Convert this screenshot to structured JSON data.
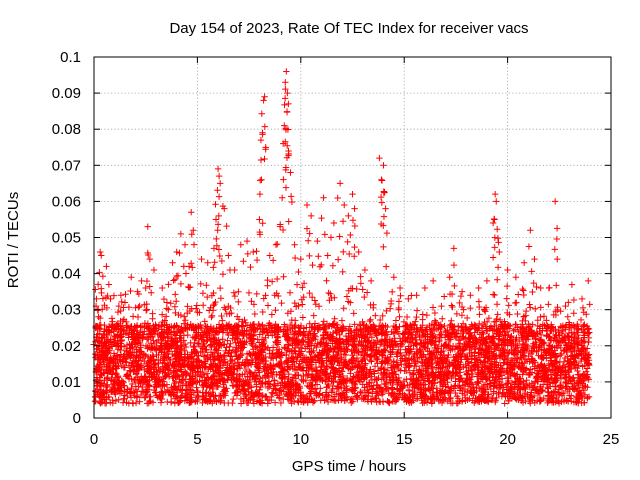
{
  "chart_data": {
    "type": "scatter",
    "title": "Day 154 of 2023, Rate Of TEC Index for receiver vacs",
    "xlabel": "GPS time / hours",
    "ylabel": "ROTI / TECUs",
    "xlim": [
      0,
      25
    ],
    "ylim": [
      0,
      0.1
    ],
    "xticks": [
      "0",
      "5",
      "10",
      "15",
      "20",
      "25"
    ],
    "yticks": [
      "0",
      "0.01",
      "0.02",
      "0.03",
      "0.04",
      "0.05",
      "0.06",
      "0.07",
      "0.08",
      "0.09",
      "0.1"
    ],
    "grid": true,
    "marker": "+",
    "color": "#ff0000",
    "series": [
      {
        "points": [
          [
            0.1,
            0.031
          ],
          [
            0.2,
            0.037
          ],
          [
            0.3,
            0.046
          ],
          [
            0.35,
            0.045
          ],
          [
            0.6,
            0.042
          ],
          [
            0.8,
            0.033
          ],
          [
            1.2,
            0.031
          ],
          [
            1.5,
            0.032
          ],
          [
            1.8,
            0.039
          ],
          [
            2.1,
            0.035
          ],
          [
            2.3,
            0.038
          ],
          [
            2.5,
            0.036
          ],
          [
            2.6,
            0.053
          ],
          [
            2.7,
            0.044
          ],
          [
            2.9,
            0.041
          ],
          [
            3.3,
            0.036
          ],
          [
            3.6,
            0.037
          ],
          [
            3.8,
            0.043
          ],
          [
            4.0,
            0.046
          ],
          [
            4.2,
            0.051
          ],
          [
            4.4,
            0.048
          ],
          [
            4.6,
            0.042
          ],
          [
            4.7,
            0.057
          ],
          [
            4.8,
            0.052
          ],
          [
            5.2,
            0.044
          ],
          [
            5.5,
            0.043
          ],
          [
            5.8,
            0.047
          ],
          [
            5.9,
            0.055
          ],
          [
            6.0,
            0.069
          ],
          [
            6.05,
            0.067
          ],
          [
            6.1,
            0.065
          ],
          [
            6.3,
            0.058
          ],
          [
            6.5,
            0.045
          ],
          [
            6.8,
            0.041
          ],
          [
            7.1,
            0.048
          ],
          [
            7.4,
            0.049
          ],
          [
            7.7,
            0.046
          ],
          [
            8.0,
            0.055
          ],
          [
            8.1,
            0.066
          ],
          [
            8.15,
            0.079
          ],
          [
            8.2,
            0.088
          ],
          [
            8.25,
            0.089
          ],
          [
            8.5,
            0.045
          ],
          [
            8.8,
            0.048
          ],
          [
            9.0,
            0.053
          ],
          [
            9.1,
            0.061
          ],
          [
            9.15,
            0.076
          ],
          [
            9.2,
            0.081
          ],
          [
            9.25,
            0.093
          ],
          [
            9.3,
            0.096
          ],
          [
            9.35,
            0.09
          ],
          [
            9.4,
            0.087
          ],
          [
            9.5,
            0.068
          ],
          [
            9.7,
            0.048
          ],
          [
            10.0,
            0.044
          ],
          [
            10.3,
            0.059
          ],
          [
            10.5,
            0.056
          ],
          [
            10.8,
            0.049
          ],
          [
            11.1,
            0.061
          ],
          [
            11.3,
            0.045
          ],
          [
            11.6,
            0.054
          ],
          [
            11.9,
            0.065
          ],
          [
            12.1,
            0.059
          ],
          [
            12.3,
            0.056
          ],
          [
            12.5,
            0.062
          ],
          [
            12.6,
            0.058
          ],
          [
            12.8,
            0.046
          ],
          [
            13.1,
            0.041
          ],
          [
            13.4,
            0.038
          ],
          [
            13.8,
            0.072
          ],
          [
            13.9,
            0.066
          ],
          [
            14.0,
            0.07
          ],
          [
            14.1,
            0.058
          ],
          [
            14.5,
            0.039
          ],
          [
            14.8,
            0.036
          ],
          [
            15.2,
            0.033
          ],
          [
            15.6,
            0.034
          ],
          [
            16.0,
            0.036
          ],
          [
            16.4,
            0.038
          ],
          [
            16.8,
            0.031
          ],
          [
            17.2,
            0.039
          ],
          [
            17.4,
            0.047
          ],
          [
            17.8,
            0.035
          ],
          [
            18.2,
            0.034
          ],
          [
            18.6,
            0.036
          ],
          [
            19.0,
            0.038
          ],
          [
            19.3,
            0.054
          ],
          [
            19.4,
            0.062
          ],
          [
            19.45,
            0.06
          ],
          [
            19.6,
            0.046
          ],
          [
            20.0,
            0.041
          ],
          [
            20.4,
            0.039
          ],
          [
            20.8,
            0.043
          ],
          [
            21.1,
            0.052
          ],
          [
            21.3,
            0.044
          ],
          [
            21.6,
            0.036
          ],
          [
            22.0,
            0.036
          ],
          [
            22.3,
            0.06
          ],
          [
            22.4,
            0.044
          ],
          [
            22.8,
            0.031
          ],
          [
            23.2,
            0.029
          ],
          [
            23.6,
            0.033
          ],
          [
            23.9,
            0.038
          ]
        ]
      }
    ]
  }
}
